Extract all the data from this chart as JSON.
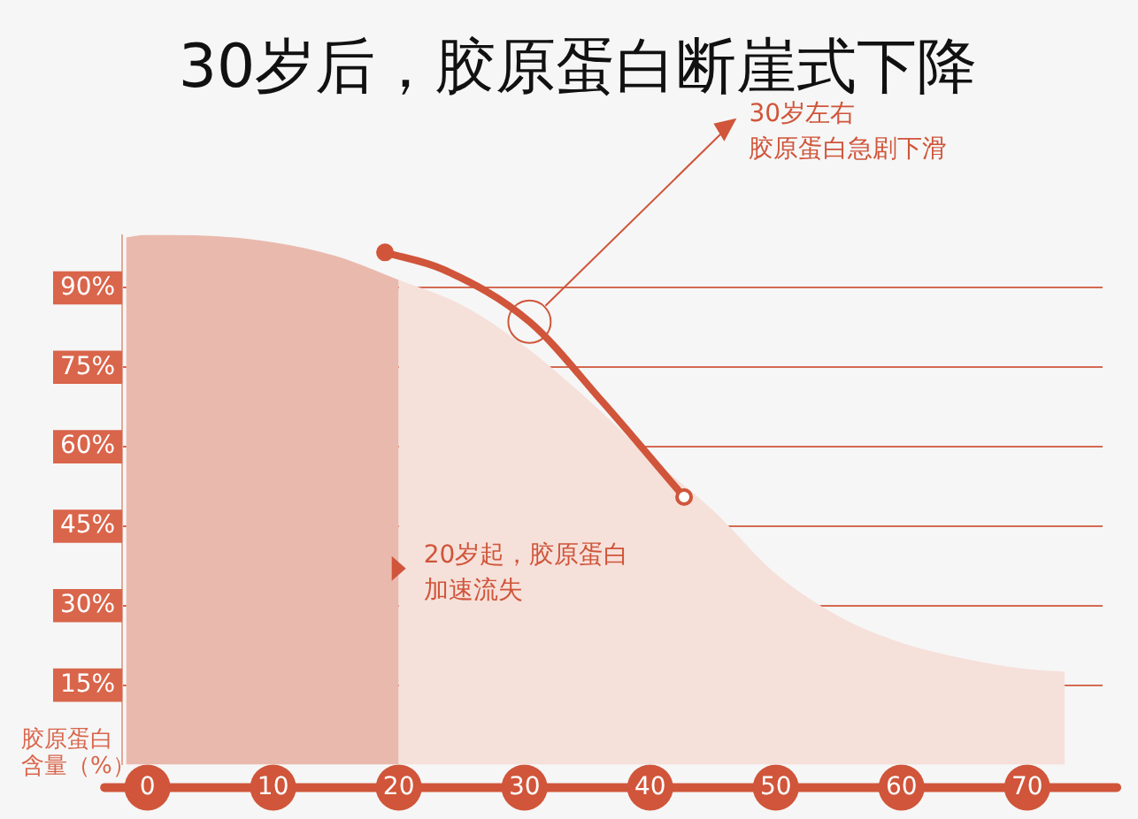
{
  "chart_data": {
    "type": "area",
    "title": "30岁后，胶原蛋白断崖式下降",
    "ylabel": "胶原蛋白含量（%）",
    "xlim": [
      -2,
      76
    ],
    "xticks": [
      0,
      10,
      20,
      30,
      40,
      50,
      60,
      70
    ],
    "ylim": [
      0,
      100
    ],
    "yticks": [
      {
        "value": 15,
        "label": "15%"
      },
      {
        "value": 30,
        "label": "30%"
      },
      {
        "value": 45,
        "label": "45%"
      },
      {
        "value": 60,
        "label": "60%"
      },
      {
        "value": 75,
        "label": "75%"
      },
      {
        "value": 90,
        "label": "90%"
      }
    ],
    "grid": "y",
    "series": [
      {
        "color": "#eab9ad",
        "x": [
          -1.7,
          0,
          5,
          10,
          15,
          20
        ],
        "values": [
          99.5,
          100,
          99.8,
          98.6,
          96,
          91.5
        ]
      },
      {
        "color": "#f6e0da",
        "x": [
          20,
          25,
          30,
          35,
          40,
          45,
          50,
          55,
          60,
          65,
          70,
          73
        ],
        "values": [
          91.5,
          86.8,
          79,
          69,
          58,
          48,
          36,
          28,
          23,
          20,
          18,
          17.5
        ]
      },
      {
        "type": "line",
        "color": "#d0553a",
        "marker": "circle",
        "x": [
          18.9,
          23.5,
          30.4,
          36.2,
          42.7
        ],
        "values": [
          96.7,
          93.5,
          83.6,
          68.5,
          50.5
        ]
      }
    ],
    "annotations": [
      "30岁左右胶原蛋白急剧下滑",
      {
        "text": "20岁起，胶原蛋白加速流失",
        "x": 20,
        "y": 37
      }
    ]
  }
}
